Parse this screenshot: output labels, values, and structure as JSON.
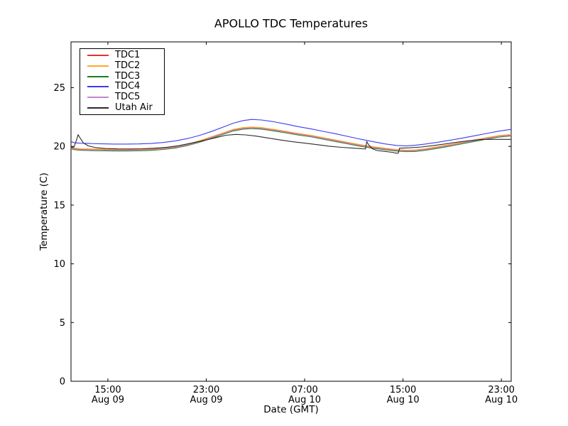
{
  "chart_data": {
    "type": "line",
    "title": "APOLLO TDC Temperatures",
    "xlabel": "Date (GMT)",
    "ylabel": "Temperature (C)",
    "grid": false,
    "legend_position": "upper left",
    "frame_color": "#000000",
    "background_color": "#ffffff",
    "x_unit": "hours since Aug 09 12:00 GMT",
    "xlim": [
      0,
      35.8
    ],
    "ylim": [
      0,
      28.9
    ],
    "xticks": {
      "values": [
        3,
        11,
        19,
        27,
        35
      ],
      "labels": [
        [
          "15:00",
          "Aug 09"
        ],
        [
          "23:00",
          "Aug 09"
        ],
        [
          "07:00",
          "Aug 10"
        ],
        [
          "15:00",
          "Aug 10"
        ],
        [
          "23:00",
          "Aug 10"
        ]
      ]
    },
    "yticks": {
      "values": [
        0,
        5,
        10,
        15,
        20,
        25
      ],
      "labels": [
        "0",
        "5",
        "10",
        "15",
        "20",
        "25"
      ]
    },
    "cluster_base": [
      [
        0,
        19.92
      ],
      [
        0.3,
        19.85
      ],
      [
        0.8,
        19.8
      ],
      [
        1.5,
        19.78
      ],
      [
        2.5,
        19.76
      ],
      [
        3.5,
        19.74
      ],
      [
        4.5,
        19.74
      ],
      [
        5.5,
        19.75
      ],
      [
        6.5,
        19.79
      ],
      [
        7.5,
        19.87
      ],
      [
        8.5,
        20.0
      ],
      [
        9.5,
        20.2
      ],
      [
        10.5,
        20.5
      ],
      [
        11.5,
        20.85
      ],
      [
        12.5,
        21.2
      ],
      [
        13.2,
        21.45
      ],
      [
        14,
        21.6
      ],
      [
        14.7,
        21.65
      ],
      [
        15.5,
        21.6
      ],
      [
        16.5,
        21.45
      ],
      [
        17.5,
        21.28
      ],
      [
        18.5,
        21.1
      ],
      [
        19.5,
        20.95
      ],
      [
        20.5,
        20.75
      ],
      [
        21.5,
        20.55
      ],
      [
        22.5,
        20.35
      ],
      [
        23.5,
        20.15
      ],
      [
        24.5,
        19.98
      ],
      [
        25.5,
        19.85
      ],
      [
        26.5,
        19.73
      ],
      [
        27.3,
        19.68
      ],
      [
        28,
        19.7
      ],
      [
        28.8,
        19.8
      ],
      [
        29.8,
        19.97
      ],
      [
        30.8,
        20.15
      ],
      [
        31.8,
        20.35
      ],
      [
        32.8,
        20.55
      ],
      [
        33.8,
        20.75
      ],
      [
        34.8,
        20.92
      ],
      [
        35.8,
        21.02
      ]
    ],
    "series": [
      {
        "name": "TDC1",
        "color": "#e53131",
        "base": "cluster",
        "offset": -0.04
      },
      {
        "name": "TDC2",
        "color": "#ffa726",
        "base": "cluster",
        "offset": 0
      },
      {
        "name": "TDC3",
        "color": "#1e7d1e",
        "base": "cluster",
        "offset": -0.13
      },
      {
        "name": "TDC4",
        "color": "#3b3bf0",
        "points": [
          [
            0,
            20.42
          ],
          [
            0.3,
            20.3
          ],
          [
            0.8,
            20.27
          ],
          [
            1.5,
            20.25
          ],
          [
            2.5,
            20.22
          ],
          [
            3.5,
            20.2
          ],
          [
            4.5,
            20.2
          ],
          [
            5.5,
            20.21
          ],
          [
            6.5,
            20.25
          ],
          [
            7.5,
            20.33
          ],
          [
            8.5,
            20.47
          ],
          [
            9.5,
            20.67
          ],
          [
            10.5,
            20.95
          ],
          [
            11.5,
            21.3
          ],
          [
            12.5,
            21.7
          ],
          [
            13.2,
            21.98
          ],
          [
            14,
            22.2
          ],
          [
            14.7,
            22.3
          ],
          [
            15.5,
            22.25
          ],
          [
            16.5,
            22.1
          ],
          [
            17.5,
            21.9
          ],
          [
            18.5,
            21.68
          ],
          [
            19.5,
            21.5
          ],
          [
            20.5,
            21.28
          ],
          [
            21.5,
            21.08
          ],
          [
            22.5,
            20.85
          ],
          [
            23.5,
            20.62
          ],
          [
            24.5,
            20.42
          ],
          [
            25.5,
            20.22
          ],
          [
            26.5,
            20.08
          ],
          [
            27.3,
            20.05
          ],
          [
            28,
            20.1
          ],
          [
            28.8,
            20.2
          ],
          [
            29.8,
            20.35
          ],
          [
            30.8,
            20.52
          ],
          [
            31.8,
            20.7
          ],
          [
            32.8,
            20.9
          ],
          [
            33.8,
            21.1
          ],
          [
            34.8,
            21.3
          ],
          [
            35.8,
            21.45
          ]
        ]
      },
      {
        "name": "TDC5",
        "color": "#c289d1",
        "base": "cluster",
        "offset": -0.08
      },
      {
        "name": "Utah Air",
        "color": "#2b2b2b",
        "points": [
          [
            0,
            19.9
          ],
          [
            0.25,
            19.95
          ],
          [
            0.45,
            20.55
          ],
          [
            0.58,
            21.0
          ],
          [
            0.75,
            20.7
          ],
          [
            1.0,
            20.3
          ],
          [
            1.4,
            20.05
          ],
          [
            2.0,
            19.9
          ],
          [
            2.8,
            19.82
          ],
          [
            3.8,
            19.79
          ],
          [
            4.8,
            19.78
          ],
          [
            5.8,
            19.8
          ],
          [
            6.8,
            19.85
          ],
          [
            7.8,
            19.93
          ],
          [
            8.8,
            20.07
          ],
          [
            9.8,
            20.28
          ],
          [
            10.8,
            20.5
          ],
          [
            11.8,
            20.75
          ],
          [
            12.6,
            20.95
          ],
          [
            13.4,
            21.02
          ],
          [
            14.2,
            20.98
          ],
          [
            15,
            20.88
          ],
          [
            16,
            20.72
          ],
          [
            17,
            20.55
          ],
          [
            18,
            20.4
          ],
          [
            19,
            20.28
          ],
          [
            20,
            20.15
          ],
          [
            21,
            20.02
          ],
          [
            22,
            19.92
          ],
          [
            23,
            19.85
          ],
          [
            23.7,
            19.8
          ],
          [
            23.95,
            19.78
          ],
          [
            24.05,
            20.42
          ],
          [
            24.2,
            20.15
          ],
          [
            24.5,
            19.8
          ],
          [
            24.9,
            19.65
          ],
          [
            25.5,
            19.58
          ],
          [
            26.1,
            19.5
          ],
          [
            26.5,
            19.42
          ],
          [
            26.62,
            19.42
          ],
          [
            26.72,
            19.85
          ],
          [
            27.5,
            19.88
          ],
          [
            28.5,
            19.95
          ],
          [
            29.5,
            20.08
          ],
          [
            30.5,
            20.22
          ],
          [
            31.5,
            20.37
          ],
          [
            32.5,
            20.5
          ],
          [
            33.3,
            20.58
          ],
          [
            34,
            20.6
          ],
          [
            35,
            20.6
          ],
          [
            35.8,
            20.6
          ]
        ]
      }
    ]
  }
}
